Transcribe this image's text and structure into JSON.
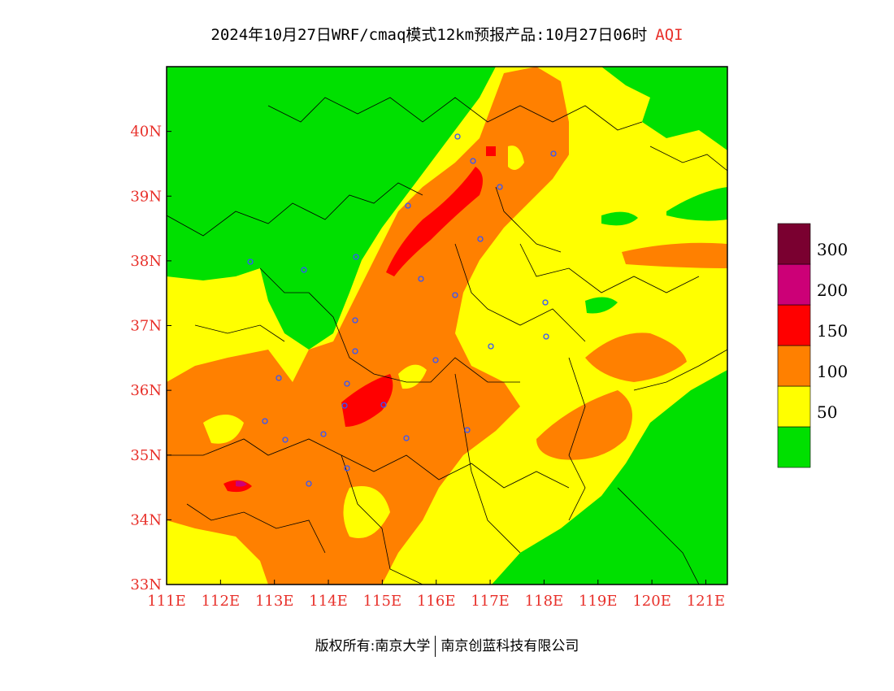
{
  "title": {
    "main": "2024年10月27日WRF/cmaq模式12km预报产品:10月27日06时",
    "variable": "AQI"
  },
  "axes": {
    "x_ticks": [
      "111E",
      "112E",
      "113E",
      "114E",
      "115E",
      "116E",
      "117E",
      "118E",
      "119E",
      "120E",
      "121E"
    ],
    "y_ticks": [
      "40N",
      "39N",
      "38N",
      "37N",
      "36N",
      "35N",
      "34N",
      "33N"
    ],
    "lon_range": [
      111,
      121.4
    ],
    "lat_range": [
      33,
      41
    ]
  },
  "legend": {
    "bins": [
      {
        "label": "",
        "color": "#00e000"
      },
      {
        "label": "50",
        "color": "#ffff00"
      },
      {
        "label": "100",
        "color": "#ff8000"
      },
      {
        "label": "150",
        "color": "#ff0000"
      },
      {
        "label": "200",
        "color": "#cc0077"
      },
      {
        "label": "300",
        "color": "#7a0030"
      }
    ]
  },
  "footer": {
    "left": "版权所有:南京大学",
    "right": "南京创蓝科技有限公司"
  }
}
